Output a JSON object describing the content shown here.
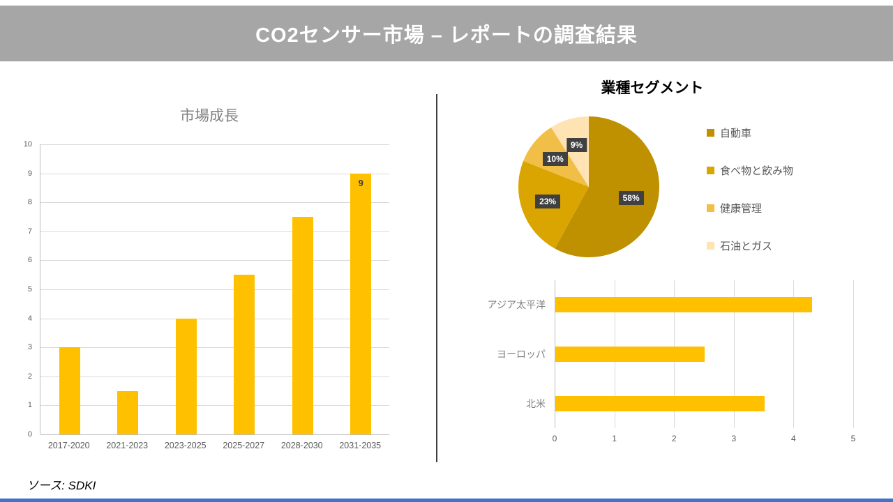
{
  "header": {
    "title": "CO2センサー市場 – レポートの調査結果"
  },
  "footer": {
    "source_label": "ソース:",
    "source_value": "SDKI"
  },
  "colors": {
    "accent_gold": "#FFC000",
    "header_gray": "#A6A6A6",
    "label_box": "#404040",
    "bottom_strip": "#4472C4"
  },
  "chart_data": [
    {
      "id": "market_growth",
      "type": "bar",
      "title": "市場成長",
      "categories": [
        "2017-2020",
        "2021-2023",
        "2023-2025",
        "2025-2027",
        "2028-2030",
        "2031-2035"
      ],
      "values": [
        3,
        1.5,
        4,
        5.5,
        7.5,
        9
      ],
      "ylim": [
        0,
        10
      ],
      "yticks": [
        0,
        1,
        2,
        3,
        4,
        5,
        6,
        7,
        8,
        9,
        10
      ],
      "bar_color": "#FFC000",
      "grid": true,
      "data_label_last": "9"
    },
    {
      "id": "industry_segments",
      "type": "pie",
      "title": "業種セグメント",
      "legend_position": "right",
      "slices": [
        {
          "label": "自動車",
          "value": 58,
          "display": "58%",
          "color": "#BF9000"
        },
        {
          "label": "食べ物と飲み物",
          "value": 23,
          "display": "23%",
          "color": "#DAA500"
        },
        {
          "label": "健康管理",
          "value": 10,
          "display": "10%",
          "color": "#F1BE48"
        },
        {
          "label": "石油とガス",
          "value": 9,
          "display": "9%",
          "color": "#FFE3B3"
        }
      ]
    },
    {
      "id": "regional_market",
      "type": "bar-horizontal",
      "categories": [
        "アジア太平洋",
        "ヨーロッパ",
        "北米"
      ],
      "values": [
        4.3,
        2.5,
        3.5
      ],
      "xlim": [
        0,
        5
      ],
      "xticks": [
        0,
        1,
        2,
        3,
        4,
        5
      ],
      "bar_color": "#FFC000",
      "grid": true
    }
  ]
}
